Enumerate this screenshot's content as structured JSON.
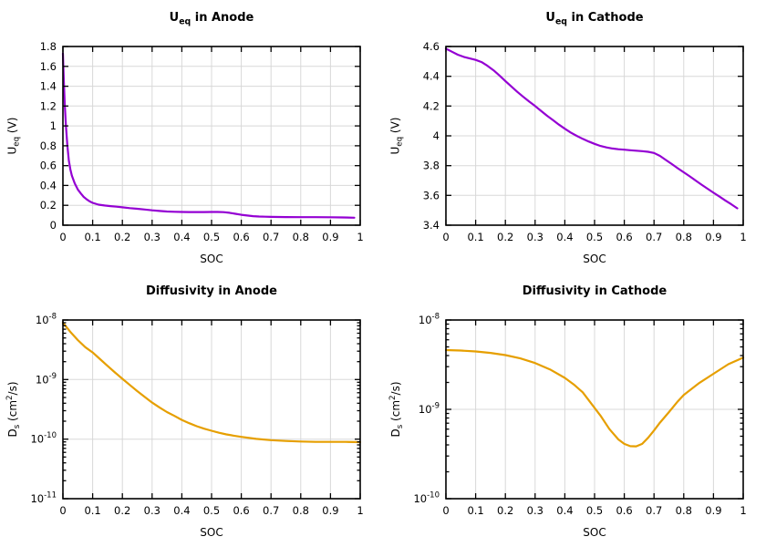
{
  "figure": {
    "background": "#ffffff",
    "palette": {
      "voltage_line": "#9400d3",
      "diffusivity_line": "#e69f00",
      "grid": "#d8d8d8",
      "axis": "#000000",
      "text": "#000000"
    }
  },
  "chart_data": [
    {
      "type": "line",
      "title": [
        {
          "t": "U"
        },
        {
          "t": "eq",
          "s": "sub"
        },
        {
          "t": " in Anode"
        }
      ],
      "xlabel": "SOC",
      "ylabel": [
        {
          "t": "U"
        },
        {
          "t": "eq",
          "s": "sub"
        },
        {
          "t": " (V)"
        }
      ],
      "xscale": "linear",
      "yscale": "linear",
      "xlim": [
        0,
        1
      ],
      "ylim": [
        0,
        1.8
      ],
      "xticks": [
        0,
        0.1,
        0.2,
        0.3,
        0.4,
        0.5,
        0.6,
        0.7,
        0.8,
        0.9,
        1
      ],
      "xtick_labels": [
        "0",
        "0.1",
        "0.2",
        "0.3",
        "0.4",
        "0.5",
        "0.6",
        "0.7",
        "0.8",
        "0.9",
        "1"
      ],
      "yticks": [
        0,
        0.2,
        0.4,
        0.6,
        0.8,
        1,
        1.2,
        1.4,
        1.6,
        1.8
      ],
      "ytick_labels": [
        "0",
        "0.2",
        "0.4",
        "0.6",
        "0.8",
        "1",
        "1.2",
        "1.4",
        "1.6",
        "1.8"
      ],
      "grid": true,
      "legend": null,
      "line_color": "#9400d3",
      "line_width": 2.2,
      "x": [
        0,
        0.003,
        0.006,
        0.01,
        0.015,
        0.02,
        0.025,
        0.03,
        0.04,
        0.05,
        0.06,
        0.07,
        0.08,
        0.09,
        0.1,
        0.12,
        0.14,
        0.16,
        0.18,
        0.2,
        0.225,
        0.25,
        0.275,
        0.3,
        0.325,
        0.35,
        0.375,
        0.4,
        0.425,
        0.45,
        0.475,
        0.5,
        0.52,
        0.54,
        0.56,
        0.58,
        0.6,
        0.62,
        0.64,
        0.66,
        0.68,
        0.7,
        0.75,
        0.8,
        0.85,
        0.9,
        0.94,
        0.98
      ],
      "y": [
        1.73,
        1.45,
        1.22,
        1.0,
        0.8,
        0.65,
        0.56,
        0.5,
        0.42,
        0.36,
        0.32,
        0.285,
        0.26,
        0.24,
        0.225,
        0.207,
        0.198,
        0.192,
        0.186,
        0.18,
        0.172,
        0.165,
        0.158,
        0.15,
        0.143,
        0.138,
        0.135,
        0.133,
        0.132,
        0.132,
        0.132,
        0.133,
        0.133,
        0.131,
        0.125,
        0.115,
        0.105,
        0.097,
        0.091,
        0.087,
        0.085,
        0.084,
        0.082,
        0.081,
        0.081,
        0.08,
        0.078,
        0.075
      ]
    },
    {
      "type": "line",
      "title": [
        {
          "t": "U"
        },
        {
          "t": "eq",
          "s": "sub"
        },
        {
          "t": " in Cathode"
        }
      ],
      "xlabel": "SOC",
      "ylabel": [
        {
          "t": "U"
        },
        {
          "t": "eq",
          "s": "sub"
        },
        {
          "t": " (V)"
        }
      ],
      "xscale": "linear",
      "yscale": "linear",
      "xlim": [
        0,
        1
      ],
      "ylim": [
        3.4,
        4.6
      ],
      "xticks": [
        0,
        0.1,
        0.2,
        0.3,
        0.4,
        0.5,
        0.6,
        0.7,
        0.8,
        0.9,
        1
      ],
      "xtick_labels": [
        "0",
        "0.1",
        "0.2",
        "0.3",
        "0.4",
        "0.5",
        "0.6",
        "0.7",
        "0.8",
        "0.9",
        "1"
      ],
      "yticks": [
        3.4,
        3.6,
        3.8,
        4,
        4.2,
        4.4,
        4.6
      ],
      "ytick_labels": [
        "3.4",
        "3.6",
        "3.8",
        "4",
        "4.2",
        "4.4",
        "4.6"
      ],
      "grid": true,
      "legend": null,
      "line_color": "#9400d3",
      "line_width": 2.2,
      "x": [
        0,
        0.02,
        0.04,
        0.06,
        0.08,
        0.1,
        0.12,
        0.14,
        0.16,
        0.18,
        0.2,
        0.22,
        0.24,
        0.26,
        0.28,
        0.3,
        0.32,
        0.34,
        0.36,
        0.38,
        0.4,
        0.42,
        0.44,
        0.46,
        0.48,
        0.5,
        0.52,
        0.54,
        0.56,
        0.58,
        0.6,
        0.62,
        0.64,
        0.66,
        0.68,
        0.7,
        0.72,
        0.74,
        0.76,
        0.78,
        0.8,
        0.82,
        0.84,
        0.86,
        0.88,
        0.9,
        0.92,
        0.94,
        0.96,
        0.98
      ],
      "y": [
        4.585,
        4.565,
        4.545,
        4.53,
        4.52,
        4.51,
        4.495,
        4.47,
        4.44,
        4.405,
        4.368,
        4.332,
        4.296,
        4.262,
        4.23,
        4.2,
        4.168,
        4.135,
        4.105,
        4.075,
        4.048,
        4.022,
        4.0,
        3.98,
        3.962,
        3.946,
        3.932,
        3.922,
        3.915,
        3.91,
        3.907,
        3.903,
        3.9,
        3.897,
        3.893,
        3.885,
        3.865,
        3.838,
        3.81,
        3.782,
        3.755,
        3.728,
        3.7,
        3.672,
        3.645,
        3.618,
        3.592,
        3.566,
        3.54,
        3.513
      ]
    },
    {
      "type": "line",
      "title": [
        {
          "t": "Diffusivity in Anode"
        }
      ],
      "xlabel": "SOC",
      "ylabel": [
        {
          "t": "D"
        },
        {
          "t": "s",
          "s": "sub"
        },
        {
          "t": " (cm"
        },
        {
          "t": "2",
          "s": "sup"
        },
        {
          "t": "/s)"
        }
      ],
      "xscale": "linear",
      "yscale": "log",
      "xlim": [
        0,
        1
      ],
      "ylim": [
        1e-11,
        1e-08
      ],
      "xticks": [
        0,
        0.1,
        0.2,
        0.3,
        0.4,
        0.5,
        0.6,
        0.7,
        0.8,
        0.9,
        1
      ],
      "xtick_labels": [
        "0",
        "0.1",
        "0.2",
        "0.3",
        "0.4",
        "0.5",
        "0.6",
        "0.7",
        "0.8",
        "0.9",
        "1"
      ],
      "ytick_exponents": [
        -11,
        -10,
        -9,
        -8
      ],
      "grid": true,
      "legend": null,
      "line_color": "#e69f00",
      "line_width": 2.2,
      "x": [
        0,
        0.025,
        0.05,
        0.075,
        0.1,
        0.125,
        0.15,
        0.175,
        0.2,
        0.225,
        0.25,
        0.275,
        0.3,
        0.325,
        0.35,
        0.375,
        0.4,
        0.425,
        0.45,
        0.475,
        0.5,
        0.525,
        0.55,
        0.575,
        0.6,
        0.65,
        0.7,
        0.75,
        0.8,
        0.85,
        0.9,
        0.95,
        1
      ],
      "y": [
        9e-09,
        6.3e-09,
        4.6e-09,
        3.5e-09,
        2.85e-09,
        2.2e-09,
        1.7e-09,
        1.32e-09,
        1.03e-09,
        8.1e-10,
        6.4e-10,
        5.1e-10,
        4.1e-10,
        3.4e-10,
        2.85e-10,
        2.45e-10,
        2.1e-10,
        1.85e-10,
        1.65e-10,
        1.5e-10,
        1.38e-10,
        1.28e-10,
        1.2e-10,
        1.14e-10,
        1.09e-10,
        1.01e-10,
        9.6e-11,
        9.3e-11,
        9.1e-11,
        9e-11,
        9e-11,
        9e-11,
        8.9e-11
      ]
    },
    {
      "type": "line",
      "title": [
        {
          "t": "Diffusivity in Cathode"
        }
      ],
      "xlabel": "SOC",
      "ylabel": [
        {
          "t": "D"
        },
        {
          "t": "s",
          "s": "sub"
        },
        {
          "t": " (cm"
        },
        {
          "t": "2",
          "s": "sup"
        },
        {
          "t": "/s)"
        }
      ],
      "xscale": "linear",
      "yscale": "log",
      "xlim": [
        0,
        1
      ],
      "ylim": [
        1e-10,
        1e-08
      ],
      "xticks": [
        0,
        0.1,
        0.2,
        0.3,
        0.4,
        0.5,
        0.6,
        0.7,
        0.8,
        0.9,
        1
      ],
      "xtick_labels": [
        "0",
        "0.1",
        "0.2",
        "0.3",
        "0.4",
        "0.5",
        "0.6",
        "0.7",
        "0.8",
        "0.9",
        "1"
      ],
      "ytick_exponents": [
        -10,
        -9,
        -8
      ],
      "grid": true,
      "legend": null,
      "line_color": "#e69f00",
      "line_width": 2.2,
      "x": [
        0,
        0.05,
        0.1,
        0.15,
        0.2,
        0.25,
        0.3,
        0.35,
        0.4,
        0.43,
        0.46,
        0.49,
        0.52,
        0.55,
        0.58,
        0.6,
        0.62,
        0.64,
        0.66,
        0.68,
        0.7,
        0.72,
        0.75,
        0.78,
        0.8,
        0.85,
        0.9,
        0.95,
        1
      ],
      "y": [
        4.6e-09,
        4.55e-09,
        4.45e-09,
        4.28e-09,
        4.05e-09,
        3.72e-09,
        3.3e-09,
        2.8e-09,
        2.25e-09,
        1.9e-09,
        1.55e-09,
        1.15e-09,
        8.5e-10,
        6e-10,
        4.6e-10,
        4.1e-10,
        3.87e-10,
        3.85e-10,
        4.1e-10,
        4.8e-10,
        5.8e-10,
        7.1e-10,
        9.3e-10,
        1.23e-09,
        1.45e-09,
        1.95e-09,
        2.5e-09,
        3.2e-09,
        3.8e-09
      ]
    }
  ]
}
